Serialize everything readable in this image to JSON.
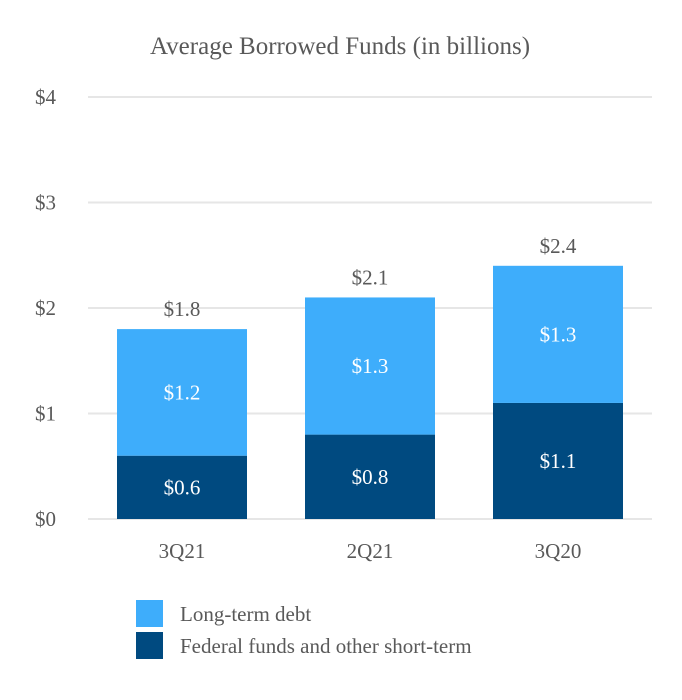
{
  "chart_data": {
    "type": "bar",
    "stacked": true,
    "title": "Average Borrowed Funds (in billions)",
    "categories": [
      "3Q21",
      "2Q21",
      "3Q20"
    ],
    "series": [
      {
        "name": "Federal funds and other short-term",
        "values": [
          0.6,
          0.8,
          1.1
        ],
        "labels": [
          "$0.6",
          "$0.8",
          "$1.1"
        ],
        "color": "#004a80"
      },
      {
        "name": "Long-term debt",
        "values": [
          1.2,
          1.3,
          1.3
        ],
        "labels": [
          "$1.2",
          "$1.3",
          "$1.3"
        ],
        "color": "#3eadfb"
      }
    ],
    "totals": [
      1.8,
      2.1,
      2.4
    ],
    "total_labels": [
      "$1.8",
      "$2.1",
      "$2.4"
    ],
    "yticks": [
      0,
      1,
      2,
      3,
      4
    ],
    "ytick_labels": [
      "$0",
      "$1",
      "$2",
      "$3",
      "$4"
    ],
    "ylim": [
      0,
      4
    ],
    "grid": true,
    "gridColor": "#e6e6e6",
    "legend": {
      "placement": "bottom",
      "order": [
        "Long-term debt",
        "Federal funds and other short-term"
      ]
    }
  }
}
